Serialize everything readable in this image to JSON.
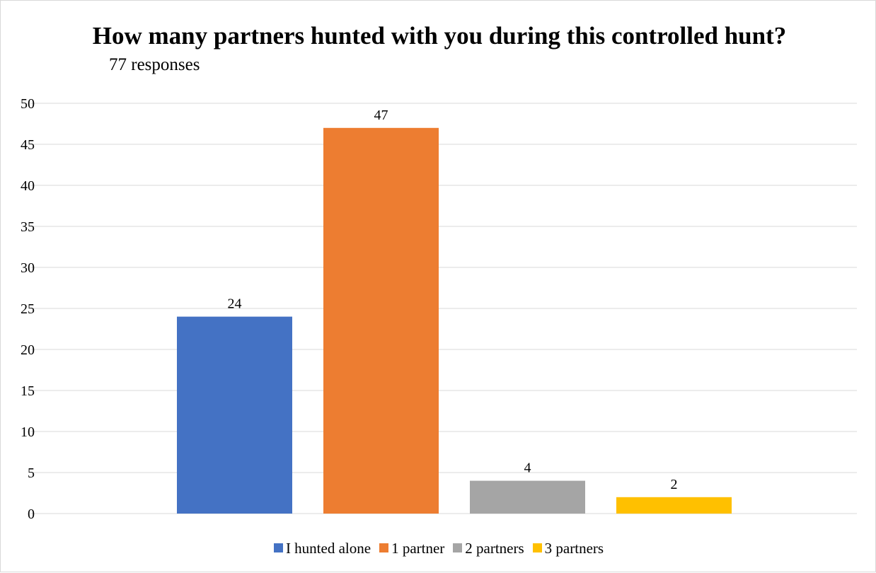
{
  "chart_data": {
    "type": "bar",
    "title": "How many partners hunted with you during this controlled hunt?",
    "subtitle": "77 responses",
    "categories": [
      "I hunted alone",
      "1 partner",
      "2 partners",
      "3 partners"
    ],
    "values": [
      24,
      47,
      4,
      2
    ],
    "colors": [
      "#4472C4",
      "#ED7D31",
      "#A5A5A5",
      "#FFC000"
    ],
    "ylim": [
      0,
      50
    ],
    "yticks": [
      0,
      5,
      10,
      15,
      20,
      25,
      30,
      35,
      40,
      45,
      50
    ],
    "grid": true,
    "legend_position": "bottom",
    "data_labels": true
  }
}
